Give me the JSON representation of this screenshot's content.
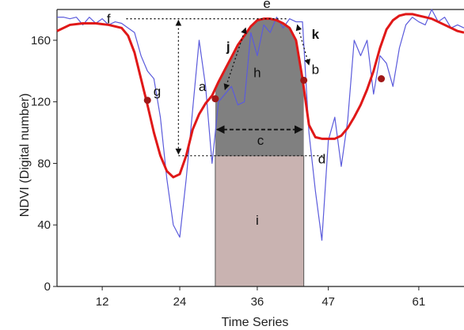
{
  "chart_data": {
    "type": "line",
    "title": "",
    "xlabel": "Time Series",
    "ylabel": "NDVI (Digital number)",
    "xlim": [
      5,
      68
    ],
    "ylim": [
      0,
      180
    ],
    "xticks": [
      12,
      24,
      36,
      47,
      61
    ],
    "yticks": [
      0,
      40,
      80,
      120,
      160
    ],
    "colors": {
      "raw": "#5b5bdc",
      "smooth": "#e01818",
      "marker": "#a01818",
      "region_h": "#808080",
      "region_i": "#c9b3b1"
    },
    "series": [
      {
        "style": "raw",
        "x": [
          5,
          6,
          7,
          8,
          9,
          10,
          11,
          12,
          13,
          14,
          15,
          16,
          17,
          18,
          19,
          20,
          21,
          22,
          23,
          24,
          25,
          26,
          27,
          28,
          29,
          30,
          31,
          32,
          33,
          34,
          35,
          36,
          37,
          38,
          39,
          40,
          41,
          42,
          43,
          44,
          45,
          46,
          47,
          48,
          49,
          50,
          51,
          52,
          53,
          54,
          55,
          56,
          57,
          58,
          59,
          60,
          61,
          62,
          63,
          64,
          65,
          66,
          67,
          68
        ],
        "y": [
          175,
          175,
          174,
          175,
          170,
          175,
          171,
          174,
          170,
          172,
          171,
          168,
          165,
          150,
          140,
          135,
          110,
          70,
          40,
          32,
          70,
          115,
          160,
          130,
          80,
          120,
          125,
          130,
          118,
          120,
          165,
          150,
          170,
          165,
          175,
          168,
          174,
          172,
          172,
          100,
          62,
          30,
          95,
          110,
          78,
          108,
          160,
          150,
          160,
          125,
          150,
          145,
          130,
          155,
          170,
          175,
          172,
          170,
          180,
          172,
          175,
          168,
          170,
          168
        ]
      },
      {
        "style": "smooth",
        "x": [
          5,
          7,
          9,
          11,
          13,
          15,
          16,
          17,
          18,
          19,
          20,
          21,
          22,
          23,
          24,
          25,
          26,
          27,
          28,
          29,
          30,
          31,
          32,
          33,
          34,
          35,
          36,
          37,
          38,
          39,
          40,
          41,
          42,
          43,
          44,
          45,
          46,
          47,
          48,
          49,
          50,
          51,
          52,
          53,
          54,
          55,
          56,
          57,
          58,
          59,
          60,
          61,
          62,
          63,
          64,
          65,
          66,
          67,
          68
        ],
        "y": [
          166,
          170,
          171,
          171,
          170,
          168,
          163,
          152,
          135,
          118,
          100,
          85,
          75,
          71,
          73,
          85,
          102,
          112,
          119,
          124,
          133,
          141,
          149,
          157,
          163,
          169,
          173,
          174,
          174,
          173,
          171,
          168,
          160,
          135,
          105,
          97,
          96,
          96,
          96,
          98,
          103,
          110,
          118,
          128,
          140,
          155,
          167,
          173,
          176,
          177,
          177,
          176,
          175,
          174,
          172,
          170,
          168,
          166,
          165
        ]
      }
    ],
    "key_points": [
      {
        "label": "a",
        "x": 29.5,
        "y": 122
      },
      {
        "label": "b",
        "x": 43.2,
        "y": 134
      },
      {
        "x": 19,
        "y": 121
      },
      {
        "x": 55.2,
        "y": 135
      }
    ],
    "annotations": {
      "labels": [
        "a",
        "b",
        "c",
        "d",
        "e",
        "f",
        "g",
        "h",
        "i",
        "j",
        "k"
      ],
      "amplitude_top": 174,
      "base_level": 85,
      "season_start": 29.5,
      "season_end": 43.2
    }
  }
}
